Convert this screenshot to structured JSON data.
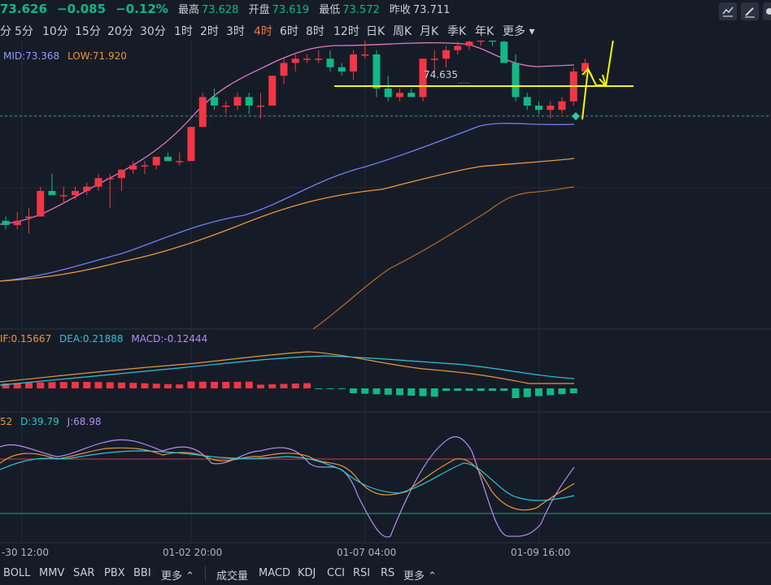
{
  "quote": {
    "last": "73.626",
    "change": "−0.085",
    "change_pct": "−0.12%",
    "high_label": "最高",
    "high": "73.628",
    "open_label": "开盘",
    "open": "73.619",
    "low_label": "最低",
    "low": "73.572",
    "prev_label": "昨收",
    "prev": "73.711"
  },
  "timeframes": [
    "分",
    "5分",
    "10分",
    "15分",
    "20分",
    "30分",
    "1时",
    "2时",
    "3时",
    "4时",
    "6时",
    "8时",
    "12时",
    "日K",
    "周K",
    "月K",
    "季K",
    "年K",
    "更多"
  ],
  "active_timeframe": "4时",
  "boll": {
    "mid_label": "MID:73.368",
    "low_label": "LOW:71.920"
  },
  "price_marker": "74.635",
  "macd": {
    "dif_label": "IF:0.15667",
    "dea_label": "DEA:0.21888",
    "macd_label": "MACD:-0.12444"
  },
  "kdj": {
    "k_label": "52",
    "d_label": "D:39.79",
    "j_label": "J:68.98"
  },
  "x_labels": [
    "-30 12:00",
    "01-02 20:00",
    "01-07 04:00",
    "01-09 16:00"
  ],
  "left_indicators": [
    "BOLL",
    "MMV",
    "SAR",
    "PBX",
    "BBI",
    "更多"
  ],
  "right_indicators": [
    "成交量",
    "MACD",
    "KDJ",
    "CCI",
    "RSI",
    "RS",
    "更多"
  ],
  "colors": {
    "up": "#f23645",
    "down": "#12b886",
    "upper_band": "#e078c8",
    "mid_band": "#6f7ef6",
    "lower_band": "#e8963c",
    "annotation": "#f5f50a"
  },
  "chart_data": {
    "type": "candlestick",
    "title": "",
    "candles_ohlc": [
      [
        72.4,
        72.45,
        72.3,
        72.35
      ],
      [
        72.35,
        72.5,
        72.3,
        72.4
      ],
      [
        72.45,
        72.55,
        72.25,
        72.45
      ],
      [
        72.45,
        72.8,
        72.45,
        72.75
      ],
      [
        72.75,
        72.95,
        72.7,
        72.7
      ],
      [
        72.7,
        72.8,
        72.6,
        72.7
      ],
      [
        72.7,
        72.8,
        72.65,
        72.75
      ],
      [
        72.75,
        72.85,
        72.7,
        72.8
      ],
      [
        72.8,
        72.95,
        72.75,
        72.9
      ],
      [
        72.9,
        72.95,
        72.55,
        72.9
      ],
      [
        72.9,
        73.0,
        72.75,
        73.0
      ],
      [
        73.0,
        73.1,
        72.95,
        73.05
      ],
      [
        73.05,
        73.1,
        72.95,
        73.05
      ],
      [
        73.05,
        73.15,
        73.0,
        73.15
      ],
      [
        73.15,
        73.2,
        73.1,
        73.1
      ],
      [
        73.1,
        73.2,
        73.05,
        73.1
      ],
      [
        73.1,
        73.5,
        73.1,
        73.5
      ],
      [
        73.5,
        73.9,
        73.5,
        73.85
      ],
      [
        73.85,
        73.95,
        73.7,
        73.75
      ],
      [
        73.75,
        73.8,
        73.65,
        73.75
      ],
      [
        73.75,
        73.9,
        73.7,
        73.85
      ],
      [
        73.85,
        73.9,
        73.65,
        73.75
      ],
      [
        73.75,
        73.9,
        73.6,
        73.75
      ],
      [
        73.75,
        74.1,
        73.75,
        74.1
      ],
      [
        74.1,
        74.3,
        74.0,
        74.25
      ],
      [
        74.25,
        74.35,
        74.15,
        74.3
      ],
      [
        74.3,
        74.35,
        74.25,
        74.3
      ],
      [
        74.3,
        74.4,
        74.25,
        74.3
      ],
      [
        74.3,
        74.4,
        74.15,
        74.2
      ],
      [
        74.2,
        74.25,
        74.1,
        74.15
      ],
      [
        74.15,
        74.4,
        74.05,
        74.35
      ],
      [
        74.35,
        74.6,
        74.3,
        74.35
      ],
      [
        74.35,
        74.4,
        73.85,
        73.95
      ],
      [
        73.95,
        74.1,
        73.8,
        73.85
      ],
      [
        73.85,
        73.95,
        73.8,
        73.9
      ],
      [
        73.9,
        73.95,
        73.85,
        73.85
      ],
      [
        73.85,
        74.3,
        73.8,
        74.3
      ],
      [
        74.3,
        74.4,
        74.1,
        74.3
      ],
      [
        74.3,
        74.45,
        74.2,
        74.4
      ],
      [
        74.4,
        74.5,
        74.35,
        74.45
      ],
      [
        74.45,
        74.55,
        74.4,
        74.5
      ],
      [
        74.5,
        74.6,
        74.45,
        74.55
      ],
      [
        74.55,
        74.65,
        74.45,
        74.5
      ],
      [
        74.5,
        74.6,
        74.3,
        74.25
      ],
      [
        74.25,
        74.35,
        73.8,
        73.85
      ],
      [
        73.85,
        73.9,
        73.7,
        73.75
      ],
      [
        73.75,
        73.8,
        73.65,
        73.7
      ],
      [
        73.7,
        73.8,
        73.6,
        73.75
      ],
      [
        73.7,
        73.85,
        73.65,
        73.8
      ],
      [
        73.8,
        74.2,
        73.75,
        74.15
      ],
      [
        74.15,
        74.3,
        74.1,
        74.25
      ]
    ],
    "boll_upper_label": "",
    "annotation_price_line": 74.635
  }
}
